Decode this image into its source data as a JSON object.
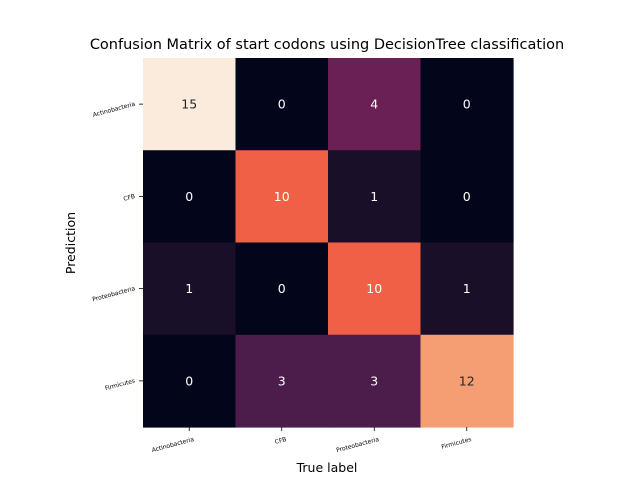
{
  "chart_data": {
    "type": "heatmap",
    "title": "Confusion Matrix of start codons using DecisionTree classification",
    "xlabel": "True label",
    "ylabel": "Prediction",
    "x_categories": [
      "Actinobacteria",
      "CFB",
      "Proteobacteria",
      "Firmicutes"
    ],
    "y_categories": [
      "Actinobacteria",
      "CFB",
      "Proteobacteria",
      "Firmicutes"
    ],
    "values": [
      [
        15,
        0,
        4,
        0
      ],
      [
        0,
        10,
        1,
        0
      ],
      [
        1,
        0,
        10,
        1
      ],
      [
        0,
        3,
        3,
        12
      ]
    ],
    "colormap": "rocket",
    "vmin": 0,
    "vmax": 15,
    "cell_annotations": true,
    "colorbar": false
  }
}
